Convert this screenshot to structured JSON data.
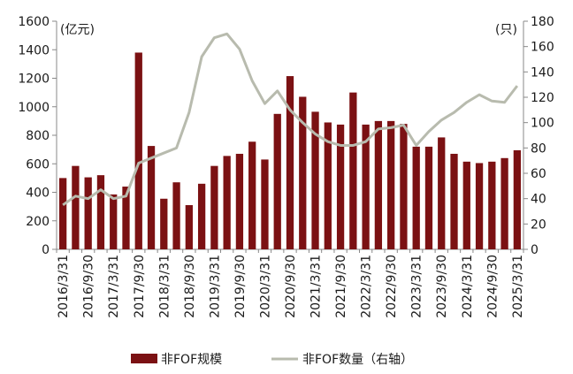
{
  "chart_data": {
    "type": "bar",
    "title": "",
    "left_axis_unit": "(亿元)",
    "right_axis_unit": "(只)",
    "y_left": {
      "min": 0,
      "max": 1600,
      "ticks": [
        0,
        200,
        400,
        600,
        800,
        1000,
        1200,
        1400,
        1600
      ]
    },
    "y_right": {
      "min": 0,
      "max": 180,
      "ticks": [
        0,
        20,
        40,
        60,
        80,
        100,
        120,
        140,
        160,
        180
      ]
    },
    "x_tick_labels": [
      "2016/3/31",
      "2016/9/30",
      "2017/3/31",
      "2017/9/30",
      "2018/3/31",
      "2018/9/30",
      "2019/3/31",
      "2019/9/30",
      "2020/3/31",
      "2020/9/30",
      "2021/3/31",
      "2021/9/30",
      "2022/3/31",
      "2022/9/30",
      "2023/3/31",
      "2023/9/30",
      "2024/3/31",
      "2024/9/30",
      "2025/3/31"
    ],
    "categories": [
      "2016/3/31",
      "2016/6/30",
      "2016/9/30",
      "2016/12/31",
      "2017/3/31",
      "2017/6/30",
      "2017/9/30",
      "2017/12/31",
      "2018/3/31",
      "2018/6/30",
      "2018/9/30",
      "2018/12/31",
      "2019/3/31",
      "2019/6/30",
      "2019/9/30",
      "2019/12/31",
      "2020/3/31",
      "2020/6/30",
      "2020/9/30",
      "2020/12/31",
      "2021/3/31",
      "2021/6/30",
      "2021/9/30",
      "2021/12/31",
      "2022/3/31",
      "2022/6/30",
      "2022/9/30",
      "2022/12/31",
      "2023/3/31",
      "2023/6/30",
      "2023/9/30",
      "2023/12/31",
      "2024/3/31",
      "2024/6/30",
      "2024/9/30",
      "2024/12/31",
      "2025/3/31"
    ],
    "series": [
      {
        "name": "非FOF规模",
        "axis": "left",
        "type": "bar",
        "color": "#7b1113",
        "values": [
          500,
          585,
          505,
          520,
          385,
          440,
          1380,
          725,
          355,
          470,
          310,
          460,
          585,
          655,
          670,
          755,
          630,
          950,
          1215,
          1070,
          965,
          890,
          875,
          1100,
          875,
          900,
          900,
          880,
          720,
          720,
          785,
          670,
          615,
          605,
          615,
          640,
          695
        ]
      },
      {
        "name": "非FOF数量（右轴）",
        "axis": "right",
        "type": "line",
        "color": "#b8bbae",
        "values": [
          35,
          42,
          40,
          47,
          40,
          42,
          68,
          72,
          76,
          80,
          108,
          152,
          167,
          170,
          158,
          133,
          115,
          125,
          110,
          100,
          91,
          85,
          82,
          82,
          85,
          95,
          96,
          98,
          82,
          93,
          102,
          108,
          116,
          122,
          117,
          116,
          129
        ]
      }
    ],
    "legend": {
      "position": "bottom"
    }
  }
}
